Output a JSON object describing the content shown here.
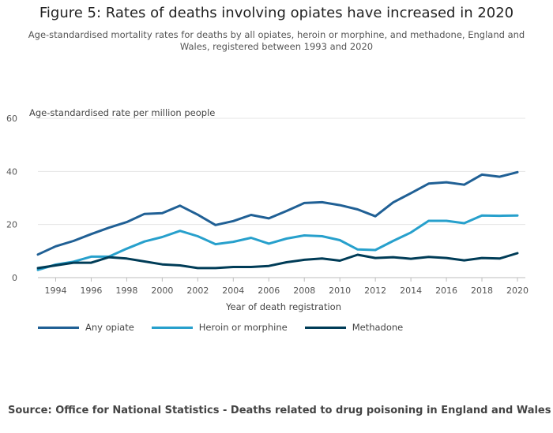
{
  "title": "Figure 5: Rates of deaths involving opiates have increased in 2020",
  "subtitle": "Age-standardised mortality rates for deaths by all opiates, heroin or morphine, and methadone, England and Wales, registered between 1993 and 2020",
  "source": "Source: Office for National Statistics - Deaths related to drug poisoning in England and Wales",
  "chart_data": {
    "type": "line",
    "title": "Figure 5: Rates of deaths involving opiates have increased in 2020",
    "ylabel": "Age-standardised rate per million people",
    "xlabel": "Year of death registration",
    "ylim": [
      0,
      60
    ],
    "yticks": [
      0,
      20,
      40,
      60
    ],
    "xticks": [
      1994,
      1996,
      1998,
      2000,
      2002,
      2004,
      2006,
      2008,
      2010,
      2012,
      2014,
      2016,
      2018,
      2020
    ],
    "grid": true,
    "legend_position": "bottom",
    "x": [
      1993,
      1994,
      1995,
      1996,
      1997,
      1998,
      1999,
      2000,
      2001,
      2002,
      2003,
      2004,
      2005,
      2006,
      2007,
      2008,
      2009,
      2010,
      2011,
      2012,
      2013,
      2014,
      2015,
      2016,
      2017,
      2018,
      2019,
      2020
    ],
    "series": [
      {
        "name": "Any opiate",
        "color": "#206095",
        "values": [
          8.7,
          11.8,
          13.8,
          16.4,
          18.8,
          20.9,
          24.0,
          24.3,
          27.1,
          23.7,
          19.8,
          21.3,
          23.6,
          22.3,
          25.1,
          28.1,
          28.4,
          27.3,
          25.7,
          23.1,
          28.3,
          31.8,
          35.4,
          35.9,
          35.0,
          38.8,
          38.0,
          39.7
        ]
      },
      {
        "name": "Heroin or morphine",
        "color": "#27a0cc",
        "values": [
          2.9,
          4.9,
          6.0,
          7.9,
          7.9,
          10.9,
          13.6,
          15.3,
          17.6,
          15.6,
          12.6,
          13.5,
          15.0,
          12.8,
          14.7,
          15.9,
          15.6,
          14.1,
          10.6,
          10.4,
          13.8,
          17.0,
          21.4,
          21.4,
          20.5,
          23.4,
          23.3,
          23.4
        ]
      },
      {
        "name": "Methadone",
        "color": "#003c57",
        "values": [
          3.6,
          4.6,
          5.6,
          5.6,
          7.7,
          7.2,
          6.1,
          5.0,
          4.6,
          3.6,
          3.6,
          4.0,
          4.0,
          4.4,
          5.8,
          6.7,
          7.2,
          6.4,
          8.6,
          7.4,
          7.7,
          7.1,
          7.8,
          7.4,
          6.5,
          7.4,
          7.2,
          9.2
        ]
      }
    ]
  }
}
